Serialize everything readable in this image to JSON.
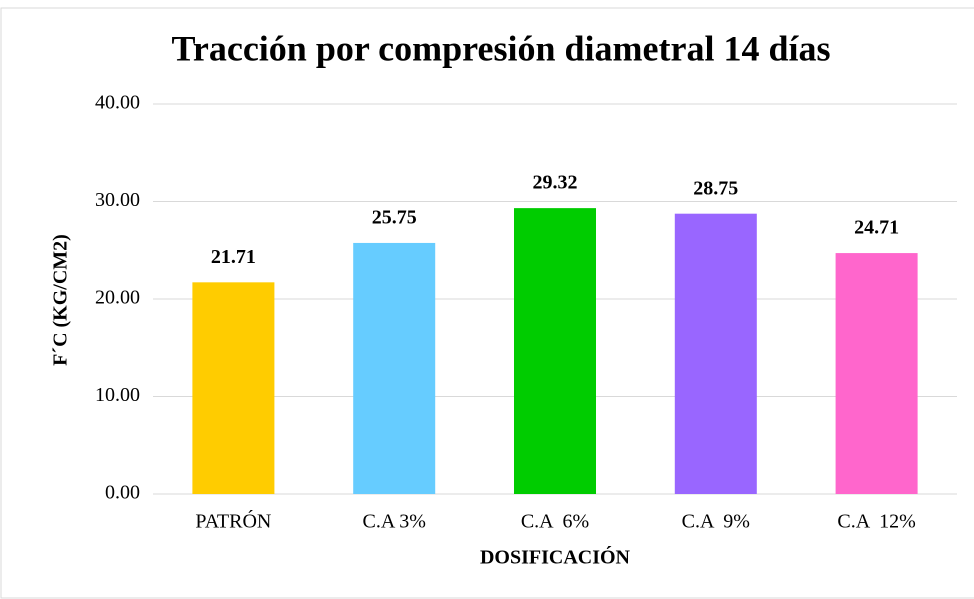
{
  "chart_data": {
    "type": "bar",
    "title": "Tracción por compresión diametral 14 días",
    "x_label": "DOSIFICACIÓN",
    "y_label": "F´C (KG/CM2)",
    "categories": [
      "PATRÓN",
      "C.A 3%",
      "C.A  6%",
      "C.A  9%",
      "C.A  12%"
    ],
    "values": [
      21.71,
      25.75,
      29.32,
      28.75,
      24.71
    ],
    "colors": [
      "#FFCC00",
      "#66CCFF",
      "#00CC00",
      "#9966FF",
      "#FF66CC"
    ],
    "ylim": [
      0,
      40
    ],
    "yticks": [
      {
        "value": 0,
        "label": "0.00"
      },
      {
        "value": 10,
        "label": "10.00"
      },
      {
        "value": 20,
        "label": "20.00"
      },
      {
        "value": 30,
        "label": "30.00"
      },
      {
        "value": 40,
        "label": "40.00"
      }
    ],
    "grid": true
  }
}
